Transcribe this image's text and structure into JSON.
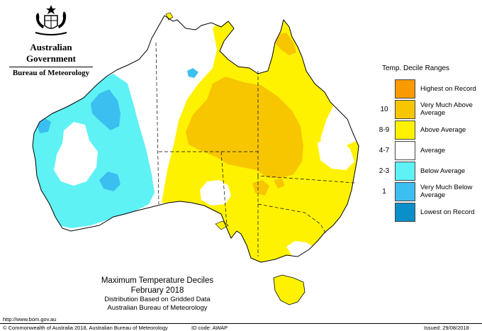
{
  "header": {
    "gov_name": "Australian Government",
    "agency_name": "Bureau of Meteorology",
    "crest_icon": "coat-of-arms-icon"
  },
  "legend": {
    "title": "Temp. Decile Ranges",
    "items": [
      {
        "decile": "",
        "label": "Highest on Record",
        "color": "#f99a00"
      },
      {
        "decile": "10",
        "label": "Very Much Above Average",
        "color": "#f7c600"
      },
      {
        "decile": "8-9",
        "label": "Above Average",
        "color": "#fff200"
      },
      {
        "decile": "4-7",
        "label": "Average",
        "color": "#ffffff"
      },
      {
        "decile": "2-3",
        "label": "Below Average",
        "color": "#5ef2f5"
      },
      {
        "decile": "1",
        "label": "Very Much Below Average",
        "color": "#3bbff0"
      },
      {
        "decile": "",
        "label": "Lowest on Record",
        "color": "#0a8fc9"
      }
    ]
  },
  "caption": {
    "title": "Maximum Temperature Deciles",
    "period": "February 2018",
    "method": "Distribution Based on Gridded Data",
    "source": "Australian Bureau of Meteorology"
  },
  "footer": {
    "url": "http://www.bom.gov.au",
    "copyright": "© Commonwealth of Australia 2018, Australian Bureau of Meteorology",
    "id_code": "ID code: AWAP",
    "issued": "Issued: 29/08/2018"
  },
  "colors": {
    "above": "#fff200",
    "very_much_above": "#f7c600",
    "highest": "#f99a00",
    "average": "#ffffff",
    "below": "#5ef2f5",
    "very_much_below": "#3bbff0",
    "lowest": "#0a8fc9"
  }
}
